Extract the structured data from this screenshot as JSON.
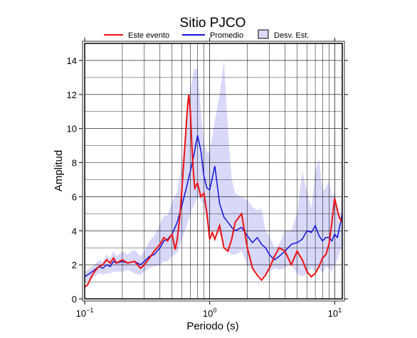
{
  "chart_data": {
    "type": "line",
    "title": "Sitio PJCO",
    "xlabel": "Periodo (s)",
    "ylabel": "Amplitud",
    "x_scale": "log",
    "xlim": [
      0.1,
      11.5
    ],
    "ylim": [
      0,
      15
    ],
    "x_ticks": [
      0.1,
      1,
      10
    ],
    "x_tick_labels": [
      {
        "base": "10",
        "exp": "−1"
      },
      {
        "base": "10",
        "exp": "0"
      },
      {
        "base": "10",
        "exp": "1"
      }
    ],
    "y_ticks": [
      0,
      2,
      4,
      6,
      8,
      10,
      12,
      14
    ],
    "y_tick_labels": [
      "0",
      "2",
      "4",
      "6",
      "8",
      "10",
      "12",
      "14"
    ],
    "grid": true,
    "legend": {
      "position": "top",
      "entries": [
        {
          "label": "Este evento",
          "color": "#ee1111",
          "kind": "line"
        },
        {
          "label": "Promedio",
          "color": "#1111dd",
          "kind": "line"
        },
        {
          "label": "Desv. Est.",
          "color": "#d8d8f8",
          "kind": "fill"
        }
      ]
    },
    "series": [
      {
        "name": "Este evento",
        "color": "#ee1111",
        "x": [
          0.1,
          0.105,
          0.11,
          0.115,
          0.12,
          0.13,
          0.14,
          0.15,
          0.16,
          0.17,
          0.18,
          0.2,
          0.22,
          0.25,
          0.28,
          0.3,
          0.33,
          0.36,
          0.4,
          0.43,
          0.46,
          0.5,
          0.53,
          0.55,
          0.58,
          0.6,
          0.62,
          0.64,
          0.66,
          0.68,
          0.7,
          0.72,
          0.74,
          0.76,
          0.8,
          0.85,
          0.9,
          0.95,
          1.0,
          1.05,
          1.1,
          1.2,
          1.3,
          1.4,
          1.5,
          1.6,
          1.8,
          2.0,
          2.2,
          2.4,
          2.6,
          2.8,
          3.0,
          3.3,
          3.6,
          4.0,
          4.5,
          5.0,
          5.5,
          6.0,
          6.5,
          7.0,
          7.5,
          8.0,
          8.5,
          9.0,
          9.5,
          10.0,
          10.5,
          11.0,
          11.5
        ],
        "values": [
          0.7,
          0.8,
          1.1,
          1.4,
          1.6,
          1.9,
          2.0,
          2.3,
          2.1,
          2.4,
          2.1,
          2.3,
          2.1,
          2.2,
          1.8,
          2.0,
          2.4,
          2.8,
          3.2,
          3.6,
          3.4,
          3.8,
          2.9,
          3.5,
          5.0,
          6.5,
          8.0,
          9.5,
          11.0,
          12.0,
          11.0,
          9.0,
          7.5,
          6.5,
          6.8,
          6.0,
          6.2,
          5.0,
          3.5,
          3.9,
          3.5,
          4.3,
          3.0,
          2.8,
          3.5,
          4.5,
          5.0,
          3.0,
          1.8,
          1.4,
          1.1,
          1.4,
          1.8,
          2.5,
          3.0,
          2.8,
          2.0,
          2.8,
          2.3,
          1.6,
          1.3,
          1.5,
          1.9,
          2.4,
          2.6,
          3.2,
          4.5,
          5.9,
          5.2,
          4.7,
          4.5
        ]
      },
      {
        "name": "Promedio",
        "color": "#1111dd",
        "x": [
          0.1,
          0.105,
          0.11,
          0.12,
          0.13,
          0.14,
          0.15,
          0.16,
          0.17,
          0.18,
          0.2,
          0.22,
          0.25,
          0.28,
          0.3,
          0.33,
          0.36,
          0.4,
          0.43,
          0.46,
          0.5,
          0.55,
          0.6,
          0.65,
          0.7,
          0.75,
          0.8,
          0.85,
          0.9,
          0.95,
          1.0,
          1.1,
          1.2,
          1.3,
          1.4,
          1.5,
          1.6,
          1.8,
          2.0,
          2.2,
          2.4,
          2.6,
          2.8,
          3.0,
          3.3,
          3.6,
          4.0,
          4.5,
          5.0,
          5.5,
          6.0,
          6.5,
          7.0,
          7.5,
          8.0,
          8.5,
          9.0,
          9.5,
          10.0,
          10.5,
          11.0,
          11.5
        ],
        "values": [
          1.3,
          1.4,
          1.5,
          1.7,
          1.9,
          1.8,
          2.0,
          1.9,
          2.2,
          2.1,
          2.2,
          2.1,
          2.2,
          2.0,
          2.2,
          2.5,
          2.6,
          3.0,
          3.4,
          3.5,
          3.8,
          4.5,
          5.5,
          6.5,
          7.5,
          8.5,
          9.6,
          8.7,
          7.2,
          6.5,
          6.4,
          7.8,
          5.6,
          4.8,
          4.5,
          4.2,
          4.0,
          4.2,
          3.7,
          3.3,
          3.6,
          3.2,
          3.0,
          2.6,
          2.3,
          2.5,
          2.8,
          3.2,
          3.3,
          3.5,
          4.0,
          3.9,
          4.3,
          3.7,
          3.4,
          3.6,
          3.6,
          3.4,
          3.8,
          3.6,
          4.3,
          5.0
        ]
      }
    ],
    "std_band": {
      "name": "Desv. Est.",
      "color": "#d8d8f8",
      "x": [
        0.1,
        0.11,
        0.12,
        0.13,
        0.14,
        0.15,
        0.16,
        0.17,
        0.18,
        0.2,
        0.22,
        0.25,
        0.28,
        0.3,
        0.33,
        0.36,
        0.4,
        0.43,
        0.46,
        0.5,
        0.55,
        0.6,
        0.65,
        0.7,
        0.75,
        0.8,
        0.85,
        0.9,
        0.95,
        1.0,
        1.1,
        1.2,
        1.3,
        1.4,
        1.5,
        1.6,
        1.8,
        2.0,
        2.2,
        2.4,
        2.6,
        2.8,
        3.0,
        3.3,
        3.6,
        4.0,
        4.5,
        5.0,
        5.5,
        6.0,
        6.5,
        7.0,
        7.5,
        8.0,
        8.5,
        9.0,
        9.5,
        10.0,
        10.5,
        11.0,
        11.5
      ],
      "upper": [
        1.6,
        1.8,
        2.0,
        2.3,
        2.2,
        2.6,
        2.4,
        2.8,
        2.5,
        2.8,
        2.6,
        2.9,
        2.5,
        2.8,
        3.4,
        3.7,
        4.4,
        4.9,
        4.9,
        5.7,
        6.3,
        8.0,
        10.0,
        12.3,
        13.5,
        13.5,
        11.0,
        9.2,
        8.6,
        8.6,
        10.5,
        12.0,
        14.0,
        10.0,
        7.0,
        6.2,
        6.0,
        5.8,
        5.4,
        5.2,
        5.3,
        4.0,
        3.7,
        3.0,
        3.2,
        4.0,
        4.0,
        5.0,
        7.5,
        6.3,
        5.3,
        7.5,
        8.2,
        6.3,
        6.5,
        7.0,
        6.0,
        6.3,
        5.3,
        4.2,
        6.5
      ],
      "lower": [
        1.0,
        1.1,
        1.3,
        1.5,
        1.4,
        1.5,
        1.5,
        1.6,
        1.6,
        1.6,
        1.7,
        1.5,
        1.4,
        1.6,
        1.8,
        1.9,
        2.0,
        2.2,
        2.2,
        2.5,
        2.7,
        3.5,
        4.2,
        5.0,
        5.5,
        6.0,
        5.8,
        5.5,
        4.5,
        4.0,
        4.0,
        3.8,
        3.2,
        2.8,
        2.6,
        2.6,
        2.8,
        2.0,
        1.8,
        1.6,
        1.2,
        1.5,
        1.6,
        1.8,
        1.7,
        1.8,
        2.0,
        1.5,
        1.3,
        1.5,
        1.8,
        1.6,
        1.8,
        1.5,
        1.9,
        1.8,
        1.6,
        2.0,
        2.3,
        2.8,
        3.0
      ]
    }
  }
}
